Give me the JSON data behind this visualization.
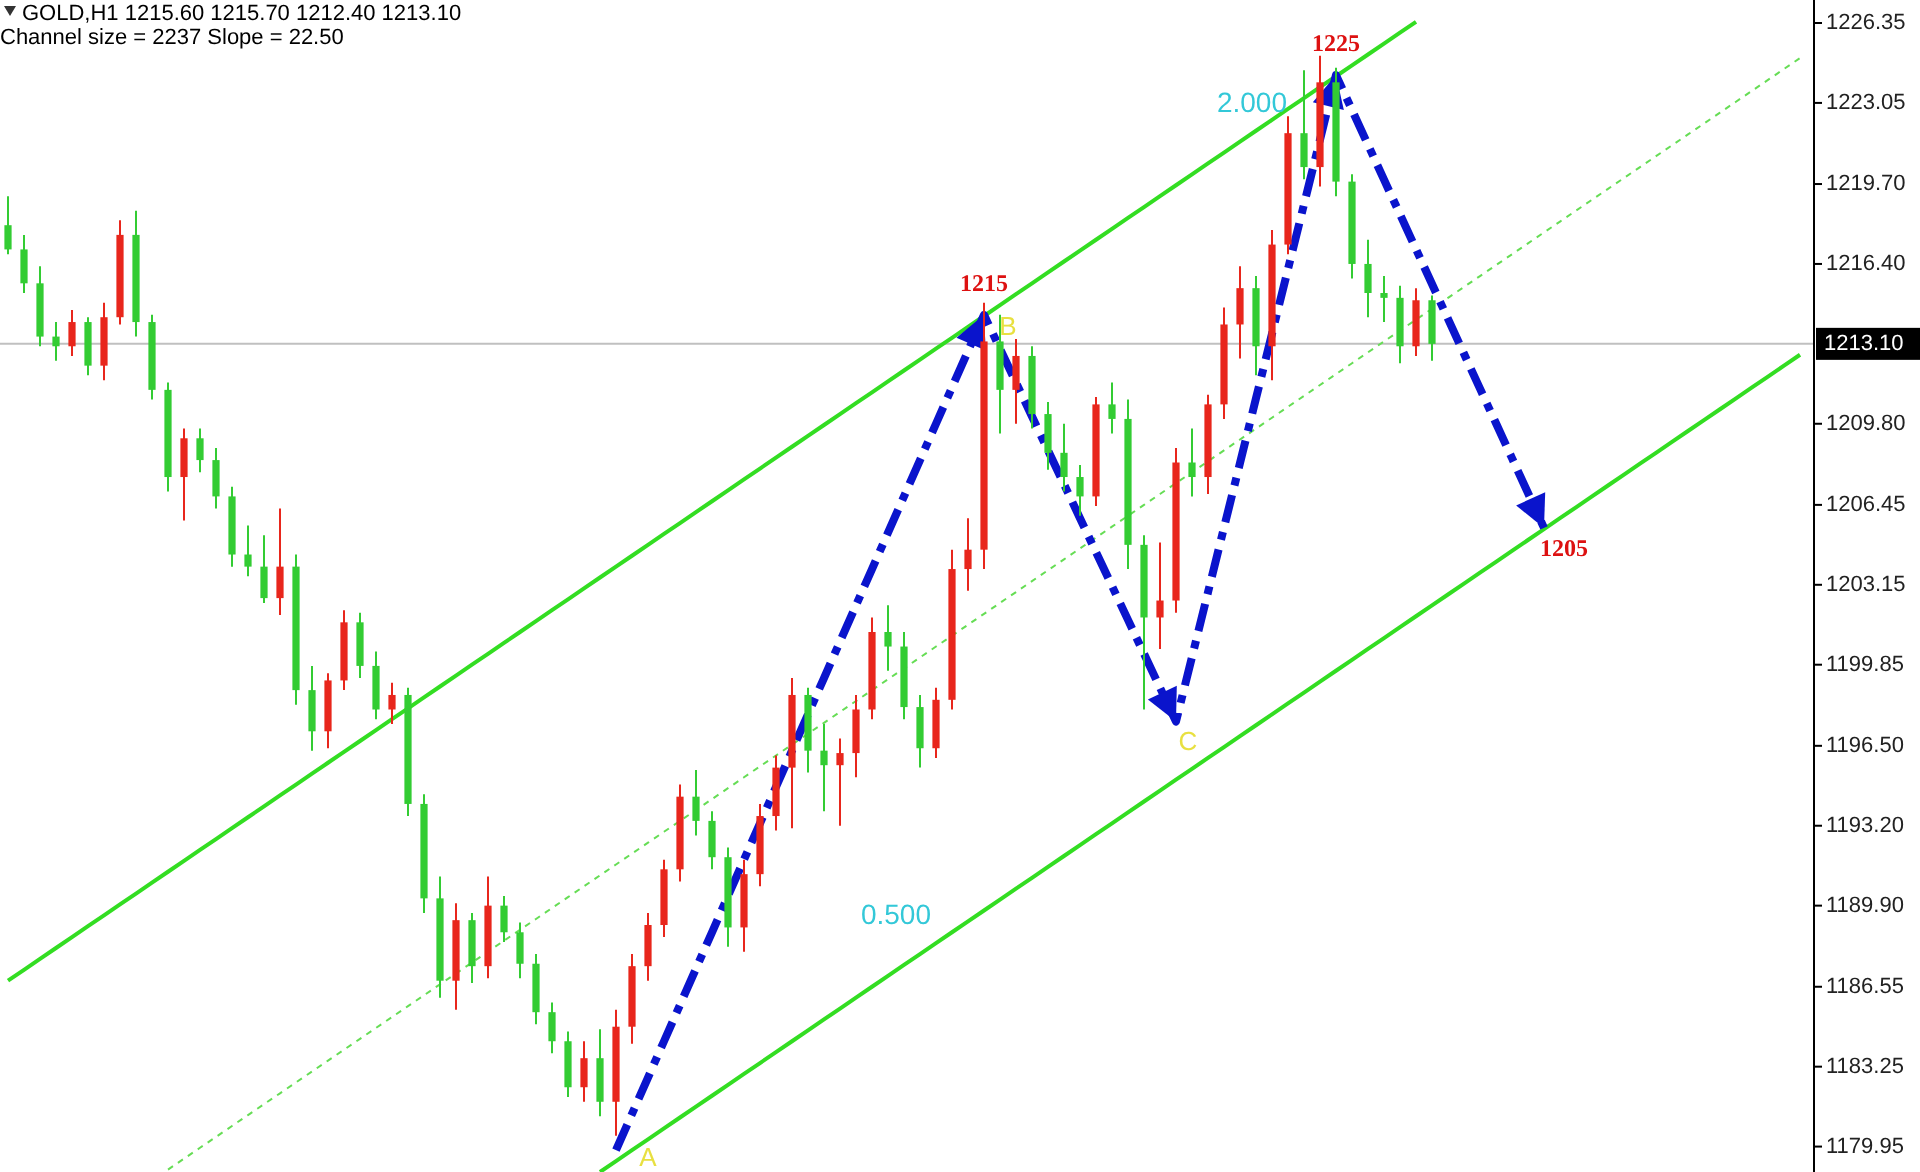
{
  "chart_data": {
    "type": "candlestick",
    "title": "GOLD,H1  1215.60 1215.70 1212.40 1213.10",
    "subtitle": "Channel size = 2237 Slope = 22.50",
    "categories": [
      null,
      null,
      null,
      null,
      null,
      null,
      null,
      null,
      null,
      null,
      null,
      null,
      null,
      null,
      null,
      null,
      null,
      null,
      null,
      null,
      null,
      null,
      null,
      null,
      null,
      null,
      null,
      null,
      null,
      null,
      null,
      null,
      null,
      null,
      null,
      null,
      null,
      null,
      null,
      null,
      null,
      null,
      null,
      null,
      null,
      null,
      null,
      null,
      null,
      null,
      null,
      null,
      null,
      null,
      null,
      null,
      null,
      null,
      null,
      null,
      null,
      null,
      null,
      null,
      null,
      null,
      null,
      null,
      null,
      null,
      null,
      null,
      null,
      null,
      null,
      null,
      null,
      null,
      null,
      null,
      null,
      null,
      null,
      null,
      null,
      null,
      null,
      null,
      null,
      null,
      null,
      null,
      null,
      null,
      null,
      null,
      null,
      null,
      null,
      null,
      null,
      null,
      null,
      null,
      null,
      null,
      null,
      null,
      null,
      null,
      null,
      null,
      null
    ],
    "ohlc": [
      [
        1218.0,
        1219.2,
        1216.8,
        1217.0
      ],
      [
        1217.0,
        1217.6,
        1215.2,
        1215.6
      ],
      [
        1215.6,
        1216.3,
        1213.0,
        1213.4
      ],
      [
        1213.4,
        1214.0,
        1212.4,
        1213.0
      ],
      [
        1213.0,
        1214.5,
        1212.6,
        1214.0
      ],
      [
        1214.0,
        1214.2,
        1211.8,
        1212.2
      ],
      [
        1212.2,
        1214.8,
        1211.6,
        1214.2
      ],
      [
        1214.2,
        1218.2,
        1213.9,
        1217.6
      ],
      [
        1217.6,
        1218.6,
        1213.4,
        1214.0
      ],
      [
        1214.0,
        1214.3,
        1210.8,
        1211.2
      ],
      [
        1211.2,
        1211.5,
        1207.0,
        1207.6
      ],
      [
        1207.6,
        1209.6,
        1205.8,
        1209.2
      ],
      [
        1209.2,
        1209.6,
        1207.8,
        1208.3
      ],
      [
        1208.3,
        1208.8,
        1206.3,
        1206.8
      ],
      [
        1206.8,
        1207.2,
        1203.9,
        1204.4
      ],
      [
        1204.4,
        1205.6,
        1203.5,
        1203.9
      ],
      [
        1203.9,
        1205.2,
        1202.4,
        1202.6
      ],
      [
        1202.6,
        1206.3,
        1201.9,
        1203.9
      ],
      [
        1203.9,
        1204.4,
        1198.2,
        1198.8
      ],
      [
        1198.8,
        1199.8,
        1196.3,
        1197.1
      ],
      [
        1197.1,
        1199.5,
        1196.4,
        1199.2
      ],
      [
        1199.2,
        1202.1,
        1198.8,
        1201.6
      ],
      [
        1201.6,
        1202.0,
        1199.3,
        1199.8
      ],
      [
        1199.8,
        1200.4,
        1197.6,
        1198.0
      ],
      [
        1198.0,
        1199.1,
        1197.4,
        1198.6
      ],
      [
        1198.6,
        1198.9,
        1193.6,
        1194.1
      ],
      [
        1194.1,
        1194.5,
        1189.6,
        1190.2
      ],
      [
        1190.2,
        1191.1,
        1186.1,
        1186.8
      ],
      [
        1186.8,
        1190.0,
        1185.6,
        1189.3
      ],
      [
        1189.3,
        1189.6,
        1186.7,
        1187.4
      ],
      [
        1187.4,
        1191.1,
        1186.9,
        1189.9
      ],
      [
        1189.9,
        1190.3,
        1188.4,
        1188.8
      ],
      [
        1188.8,
        1189.2,
        1186.9,
        1187.5
      ],
      [
        1187.5,
        1187.9,
        1185.0,
        1185.5
      ],
      [
        1185.5,
        1185.9,
        1183.8,
        1184.3
      ],
      [
        1184.3,
        1184.7,
        1182.0,
        1182.4
      ],
      [
        1182.4,
        1184.3,
        1181.8,
        1183.6
      ],
      [
        1183.6,
        1184.8,
        1181.2,
        1181.8
      ],
      [
        1181.8,
        1185.6,
        1180.4,
        1184.9
      ],
      [
        1184.9,
        1187.9,
        1184.2,
        1187.4
      ],
      [
        1187.4,
        1189.6,
        1186.8,
        1189.1
      ],
      [
        1189.1,
        1191.8,
        1188.6,
        1191.4
      ],
      [
        1191.4,
        1194.9,
        1190.9,
        1194.4
      ],
      [
        1194.4,
        1195.5,
        1192.8,
        1193.4
      ],
      [
        1193.4,
        1193.8,
        1191.4,
        1191.9
      ],
      [
        1191.9,
        1192.3,
        1188.2,
        1189.0
      ],
      [
        1189.0,
        1191.8,
        1188.0,
        1191.2
      ],
      [
        1191.2,
        1194.1,
        1190.7,
        1193.6
      ],
      [
        1193.6,
        1196.1,
        1193.0,
        1195.6
      ],
      [
        1195.6,
        1199.3,
        1193.1,
        1198.6
      ],
      [
        1198.6,
        1198.9,
        1195.4,
        1196.3
      ],
      [
        1196.3,
        1197.4,
        1193.8,
        1195.7
      ],
      [
        1195.7,
        1196.8,
        1193.2,
        1196.2
      ],
      [
        1196.2,
        1198.6,
        1195.2,
        1198.0
      ],
      [
        1198.0,
        1201.8,
        1197.6,
        1201.2
      ],
      [
        1201.2,
        1202.3,
        1199.6,
        1200.6
      ],
      [
        1200.6,
        1201.2,
        1197.6,
        1198.1
      ],
      [
        1198.1,
        1198.6,
        1195.6,
        1196.4
      ],
      [
        1196.4,
        1198.9,
        1196.0,
        1198.4
      ],
      [
        1198.4,
        1204.6,
        1198.0,
        1203.8
      ],
      [
        1203.8,
        1205.9,
        1202.9,
        1204.6
      ],
      [
        1204.6,
        1214.8,
        1203.8,
        1213.2
      ],
      [
        1213.2,
        1214.3,
        1209.4,
        1211.2
      ],
      [
        1211.2,
        1213.3,
        1209.8,
        1212.6
      ],
      [
        1212.6,
        1213.0,
        1209.6,
        1210.2
      ],
      [
        1210.2,
        1210.7,
        1207.9,
        1208.6
      ],
      [
        1208.6,
        1209.8,
        1207.0,
        1207.6
      ],
      [
        1207.6,
        1208.1,
        1206.0,
        1206.8
      ],
      [
        1206.8,
        1210.9,
        1206.4,
        1210.6
      ],
      [
        1210.6,
        1211.5,
        1209.4,
        1210.0
      ],
      [
        1210.0,
        1210.8,
        1203.8,
        1204.8
      ],
      [
        1204.8,
        1205.2,
        1198.0,
        1201.8
      ],
      [
        1201.8,
        1204.9,
        1200.5,
        1202.5
      ],
      [
        1202.5,
        1208.8,
        1202.0,
        1208.2
      ],
      [
        1208.2,
        1209.6,
        1206.8,
        1207.6
      ],
      [
        1207.6,
        1211.0,
        1206.9,
        1210.6
      ],
      [
        1210.6,
        1214.6,
        1210.0,
        1213.9
      ],
      [
        1213.9,
        1216.3,
        1212.5,
        1215.4
      ],
      [
        1215.4,
        1215.9,
        1211.8,
        1213.0
      ],
      [
        1213.0,
        1217.8,
        1211.6,
        1217.2
      ],
      [
        1217.2,
        1222.5,
        1216.8,
        1221.8
      ],
      [
        1221.8,
        1224.4,
        1219.9,
        1220.4
      ],
      [
        1220.4,
        1225.0,
        1219.6,
        1223.9
      ],
      [
        1223.9,
        1224.5,
        1219.2,
        1219.8
      ],
      [
        1219.8,
        1220.1,
        1215.8,
        1216.4
      ],
      [
        1216.4,
        1217.4,
        1214.2,
        1215.2
      ],
      [
        1215.2,
        1215.9,
        1214.0,
        1215.0
      ],
      [
        1215.0,
        1215.5,
        1212.3,
        1213.0
      ],
      [
        1213.0,
        1215.4,
        1212.6,
        1214.9
      ],
      [
        1214.9,
        1215.1,
        1212.4,
        1213.1
      ],
      null,
      null,
      null,
      null,
      null,
      null,
      null,
      null,
      null,
      null,
      null,
      null,
      null,
      null,
      null,
      null,
      null,
      null,
      null,
      null,
      null,
      null,
      null
    ],
    "colors": [
      "#33cc33",
      "#33cc33",
      "#33cc33",
      "#33cc33",
      "#e8261c",
      "#33cc33",
      "#e8261c",
      "#e8261c",
      "#33cc33",
      "#33cc33",
      "#33cc33",
      "#e8261c",
      "#33cc33",
      "#33cc33",
      "#33cc33",
      "#33cc33",
      "#33cc33",
      "#e8261c",
      "#33cc33",
      "#33cc33",
      "#e8261c",
      "#e8261c",
      "#33cc33",
      "#33cc33",
      "#e8261c",
      "#33cc33",
      "#33cc33",
      "#33cc33",
      "#e8261c",
      "#33cc33",
      "#e8261c",
      "#33cc33",
      "#33cc33",
      "#33cc33",
      "#33cc33",
      "#33cc33",
      "#e8261c",
      "#33cc33",
      "#e8261c",
      "#e8261c",
      "#e8261c",
      "#e8261c",
      "#e8261c",
      "#33cc33",
      "#33cc33",
      "#33cc33",
      "#e8261c",
      "#e8261c",
      "#e8261c",
      "#e8261c",
      "#33cc33",
      "#33cc33",
      "#e8261c",
      "#e8261c",
      "#e8261c",
      "#33cc33",
      "#33cc33",
      "#33cc33",
      "#e8261c",
      "#e8261c",
      "#e8261c",
      "#e8261c",
      "#33cc33",
      "#e8261c",
      "#33cc33",
      "#33cc33",
      "#33cc33",
      "#33cc33",
      "#e8261c",
      "#33cc33",
      "#33cc33",
      "#33cc33",
      "#e8261c",
      "#e8261c",
      "#33cc33",
      "#e8261c",
      "#e8261c",
      "#e8261c",
      "#33cc33",
      "#e8261c",
      "#e8261c",
      "#33cc33",
      "#e8261c",
      "#33cc33",
      "#33cc33",
      "#33cc33",
      "#33cc33",
      "#33cc33",
      "#e8261c",
      "#33cc33",
      null,
      null,
      null,
      null,
      null,
      null,
      null,
      null,
      null,
      null,
      null,
      null,
      null,
      null,
      null,
      null,
      null,
      null,
      null,
      null,
      null,
      null,
      null
    ],
    "series": [
      {
        "type": "line",
        "color": "#33dd22",
        "values": [
          1186.8,
          1187.25,
          1187.7,
          1188.15,
          1188.6,
          1189.05,
          1189.5,
          1189.95,
          1190.4,
          1190.85,
          1191.3,
          1191.75,
          1192.2,
          1192.65,
          1193.1,
          1193.55,
          1194.0,
          1194.45,
          1194.9,
          1195.35,
          1195.8,
          1196.25,
          1196.7,
          1197.15,
          1197.6,
          1198.05,
          1198.5,
          1198.95,
          1199.4,
          1199.85,
          1200.3,
          1200.75,
          1201.2,
          1201.65,
          1202.1,
          1202.55,
          1203.0,
          1203.45,
          1203.9,
          1204.35,
          1204.8,
          1205.25,
          1205.7,
          1206.15,
          1206.6,
          1207.05,
          1207.5,
          1207.95,
          1208.4,
          1208.85,
          1209.3,
          1209.75,
          1210.2,
          1210.65,
          1211.1,
          1211.55,
          1212.0,
          1212.45,
          1212.9,
          1213.35,
          1213.8,
          1214.25,
          1214.7,
          1215.15,
          1215.6,
          1216.05,
          1216.5,
          1216.95,
          1217.4,
          1217.85,
          1218.3,
          1218.75,
          1219.2,
          1219.65,
          1220.1,
          1220.55,
          1221.0,
          1221.45,
          1221.9,
          1222.35,
          1222.8,
          1223.25,
          1223.7,
          1224.15,
          1224.6,
          1225.05,
          1225.5,
          1225.95,
          1226.4,
          null,
          null,
          null,
          null,
          null,
          null,
          null,
          null,
          null,
          null,
          null,
          null,
          null,
          null,
          null,
          null,
          null,
          null,
          null,
          null,
          null,
          null,
          null,
          null
        ]
      },
      {
        "type": "line",
        "color": "#33dd22",
        "values": [
          null,
          null,
          null,
          null,
          null,
          null,
          null,
          null,
          null,
          null,
          null,
          null,
          null,
          null,
          null,
          null,
          null,
          null,
          null,
          null,
          null,
          null,
          null,
          null,
          null,
          null,
          null,
          null,
          null,
          null,
          null,
          null,
          null,
          null,
          null,
          null,
          null,
          1178.9,
          1179.35,
          1179.8,
          1180.25,
          1180.7,
          1181.15,
          1181.6,
          1182.05,
          1182.5,
          1182.95,
          1183.4,
          1183.85,
          1184.3,
          1184.75,
          1185.2,
          1185.65,
          1186.1,
          1186.55,
          1187.0,
          1187.45,
          1187.9,
          1188.35,
          1188.8,
          1189.25,
          1189.7,
          1190.15,
          1190.6,
          1191.05,
          1191.5,
          1191.95,
          1192.4,
          1192.85,
          1193.3,
          1193.75,
          1194.2,
          1194.65,
          1195.1,
          1195.55,
          1196.0,
          1196.45,
          1196.9,
          1197.35,
          1197.8,
          1198.25,
          1198.7,
          1199.15,
          1199.6,
          1200.05,
          1200.5,
          1200.95,
          1201.4,
          1201.85,
          1202.3,
          1202.75,
          1203.2,
          1203.65,
          1204.1,
          1204.55,
          1205.0,
          1205.45,
          1205.9,
          1206.35,
          1206.8,
          1207.25,
          1207.7,
          1208.15,
          1208.6,
          1209.05,
          1209.5,
          1209.95,
          1210.4,
          1210.85,
          1211.3,
          1211.75,
          1212.2,
          1212.65
        ]
      },
      {
        "type": "line",
        "color": "#66dd55",
        "line_style": "dotted",
        "values": [
          null,
          null,
          null,
          null,
          null,
          null,
          null,
          null,
          null,
          null,
          1179.0,
          1179.45,
          1179.9,
          1180.35,
          1180.8,
          1181.25,
          1181.7,
          1182.15,
          1182.6,
          1183.05,
          1183.5,
          1183.95,
          1184.4,
          1184.85,
          1185.3,
          1185.75,
          1186.2,
          1186.65,
          1187.1,
          1187.55,
          1188.0,
          1188.45,
          1188.9,
          1189.35,
          1189.8,
          1190.25,
          1190.7,
          1191.15,
          1191.6,
          1192.05,
          1192.5,
          1192.95,
          1193.4,
          1193.85,
          1194.3,
          1194.75,
          1195.2,
          1195.65,
          1196.1,
          1196.55,
          1197.0,
          1197.45,
          1197.9,
          1198.35,
          1198.8,
          1199.25,
          1199.7,
          1200.15,
          1200.6,
          1201.05,
          1201.5,
          1201.95,
          1202.4,
          1202.85,
          1203.3,
          1203.75,
          1204.2,
          1204.65,
          1205.1,
          1205.55,
          1206.0,
          1206.45,
          1206.9,
          1207.35,
          1207.8,
          1208.25,
          1208.7,
          1209.15,
          1209.6,
          1210.05,
          1210.5,
          1210.95,
          1211.4,
          1211.85,
          1212.3,
          1212.75,
          1213.2,
          1213.65,
          1214.1,
          1214.55,
          1215.0,
          1215.45,
          1215.9,
          1216.35,
          1216.8,
          1217.25,
          1217.7,
          1218.15,
          1218.6,
          1219.05,
          1219.5,
          1219.95,
          1220.4,
          1220.85,
          1221.3,
          1221.75,
          1222.2,
          1222.65,
          1223.1,
          1223.55,
          1224.0,
          1224.45,
          1224.9
        ]
      },
      {
        "type": "line",
        "color": "#0a14cc",
        "line_style": "dashed",
        "values": [
          null,
          null,
          null,
          null,
          null,
          null,
          null,
          null,
          null,
          null,
          null,
          null,
          null,
          null,
          null,
          null,
          null,
          null,
          null,
          null,
          null,
          null,
          null,
          null,
          null,
          null,
          null,
          null,
          null,
          null,
          null,
          null,
          null,
          null,
          null,
          null,
          null,
          null,
          1179.8,
          1181.3,
          1182.8,
          1184.3,
          1185.8,
          1187.3,
          1188.8,
          1190.3,
          1191.8,
          1193.3,
          1194.8,
          1196.3,
          1197.8,
          1199.3,
          1200.8,
          1202.3,
          1203.8,
          1205.3,
          1206.8,
          1208.3,
          1209.8,
          1211.3,
          1212.8,
          1214.3,
          1212.9,
          1211.5,
          1210.1,
          1208.7,
          1207.3,
          1205.9,
          1204.5,
          1203.1,
          1201.7,
          1200.3,
          1198.9,
          1197.5,
          1200.17,
          1202.84,
          1205.51,
          1208.18,
          1210.85,
          1213.52,
          1216.19,
          1218.86,
          1221.53,
          1224.2,
          1222.76,
          1221.32,
          1219.88,
          1218.45,
          1217.01,
          1215.57,
          1214.13,
          1212.69,
          1211.25,
          1209.82,
          1208.38,
          1206.94,
          1205.5,
          null,
          null,
          null,
          null,
          null,
          null,
          null,
          null,
          null,
          null,
          null,
          null,
          null,
          null,
          null,
          null
        ]
      }
    ],
    "ylim": [
      1178.9,
      1227.3
    ],
    "yticks": [
      1179.95,
      1183.25,
      1186.55,
      {
        "value": 1189.9,
        "label": "1189.90"
      },
      {
        "value": 1193.2,
        "label": "1193.20"
      },
      {
        "value": 1196.5,
        "label": "1196.50"
      },
      1199.85,
      1203.15,
      1206.45,
      {
        "value": 1209.8,
        "label": "1209.80"
      },
      {
        "value": 1216.4,
        "label": "1216.40"
      },
      {
        "value": 1219.7,
        "label": "1219.70"
      },
      1223.05,
      1226.35
    ],
    "tick_labels": "y",
    "ref_lines": [
      {
        "axis": "y",
        "value": 1213.1,
        "label": "1213.10",
        "color": "#c0c0c0"
      }
    ],
    "annotations": [
      {
        "text": "1215",
        "y": 1214.3
      },
      {
        "text": "1225",
        "y": 1224.2
      },
      "1205",
      {
        "text": "A",
        "y": 1179.8
      },
      {
        "text": "B",
        "y": 1214.3
      },
      {
        "text": "C",
        "y": 1197.5
      },
      "2.000",
      "0.500"
    ]
  }
}
